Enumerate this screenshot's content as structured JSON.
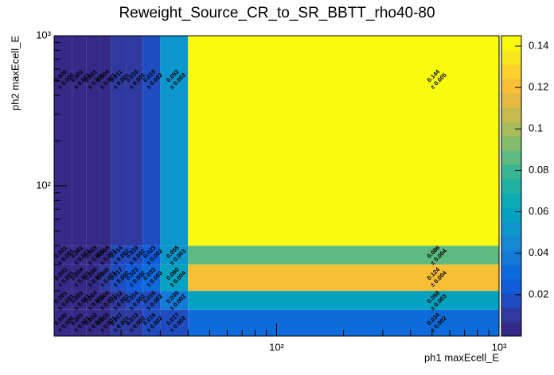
{
  "chart_data": {
    "type": "heatmap",
    "title": "Reweight_Source_CR_to_SR_BBTT_rho40-80",
    "xlabel": "ph1 maxEcell_E",
    "ylabel": "ph2 maxEcell_E",
    "xscale": "log",
    "yscale": "log",
    "xlim": [
      10,
      1000
    ],
    "ylim": [
      10,
      1000
    ],
    "xticks": [
      {
        "value": 100,
        "label": "10²"
      },
      {
        "value": 1000,
        "label": "10³"
      }
    ],
    "yticks": [
      {
        "value": 100,
        "label": "10²"
      },
      {
        "value": 1000,
        "label": "10³"
      }
    ],
    "xminorticks": [
      20,
      30,
      40,
      50,
      60,
      70,
      80,
      90,
      200,
      300,
      400,
      500,
      600,
      700,
      800,
      900
    ],
    "yminorticks": [
      20,
      30,
      40,
      50,
      60,
      70,
      80,
      90,
      200,
      300,
      400,
      500,
      600,
      700,
      800,
      900
    ],
    "xbins": [
      10,
      12,
      14,
      16,
      18,
      21,
      25,
      30,
      40,
      1000
    ],
    "ybins": [
      10,
      15,
      20,
      30,
      40,
      1000
    ],
    "values": [
      [
        0.0,
        0.001,
        0.002,
        0.003,
        0.007,
        0.013,
        0.016,
        0.017,
        0.034
      ],
      [
        0.001,
        0.002,
        0.004,
        0.004,
        0.012,
        0.014,
        0.015,
        0.035,
        0.058
      ],
      [
        0.003,
        0.004,
        0.006,
        0.009,
        0.017,
        0.023,
        0.033,
        0.06,
        0.124
      ],
      [
        0.001,
        0.002,
        0.003,
        0.004,
        0.014,
        0.019,
        0.023,
        0.055,
        0.086
      ],
      [
        0.0,
        0.001,
        0.001,
        0.004,
        0.011,
        0.01,
        0.019,
        0.052,
        0.144
      ]
    ],
    "value_labels": [
      [
        "0.000",
        "0.001",
        "0.002",
        "0.003",
        "0.007",
        "0.013",
        "0.016",
        "0.017",
        "0.034"
      ],
      [
        "0.001",
        "0.002",
        "0.004",
        "0.004",
        "0.012",
        "0.014",
        "0.015",
        "0.035",
        "0.058"
      ],
      [
        "0.003",
        "0.004",
        "0.006",
        "0.009",
        "0.017",
        "0.023",
        "0.033",
        "0.060",
        "0.124"
      ],
      [
        "0.001",
        "0.002",
        "0.003",
        "0.004",
        "0.014",
        "0.019",
        "0.023",
        "0.055",
        "0.086"
      ],
      [
        "0.000",
        "0.001",
        "0.001",
        "0.004",
        "0.011",
        "0.010",
        "0.019",
        "0.052",
        "0.144"
      ]
    ],
    "errors": [
      [
        0.0,
        0.001,
        0.001,
        0.001,
        0.001,
        0.002,
        0.002,
        0.002,
        0.002
      ],
      [
        0.001,
        0.001,
        0.001,
        0.001,
        0.002,
        0.002,
        0.002,
        0.002,
        0.003
      ],
      [
        0.001,
        0.001,
        0.001,
        0.001,
        0.002,
        0.002,
        0.003,
        0.004,
        0.004
      ],
      [
        0.001,
        0.001,
        0.001,
        0.001,
        0.002,
        0.002,
        0.002,
        0.003,
        0.004
      ],
      [
        0.0,
        0.001,
        0.001,
        0.001,
        0.001,
        0.001,
        0.002,
        0.003,
        0.005
      ]
    ],
    "error_labels": [
      [
        "± 0.000",
        "± 0.001",
        "± 0.001",
        "± 0.001",
        "± 0.001",
        "± 0.002",
        "± 0.002",
        "± 0.002",
        "± 0.002"
      ],
      [
        "± 0.001",
        "± 0.001",
        "± 0.001",
        "± 0.001",
        "± 0.002",
        "± 0.002",
        "± 0.002",
        "± 0.002",
        "± 0.003"
      ],
      [
        "± 0.001",
        "± 0.001",
        "± 0.001",
        "± 0.001",
        "± 0.002",
        "± 0.002",
        "± 0.003",
        "± 0.004",
        "± 0.004"
      ],
      [
        "± 0.001",
        "± 0.001",
        "± 0.001",
        "± 0.001",
        "± 0.002",
        "± 0.002",
        "± 0.002",
        "± 0.003",
        "± 0.004"
      ],
      [
        "± 0.000",
        "± 0.001",
        "± 0.001",
        "± 0.001",
        "± 0.001",
        "± 0.001",
        "± 0.002",
        "± 0.003",
        "± 0.005"
      ]
    ],
    "zlim": [
      0,
      0.145
    ],
    "zticks": [
      0.02,
      0.04,
      0.06,
      0.08,
      0.1,
      0.12,
      0.14
    ],
    "palette": [
      "#352a87",
      "#2e3a9f",
      "#1f4cc0",
      "#0f5cdd",
      "#0d6bdb",
      "#137ad6",
      "#1488d3",
      "#0d96cb",
      "#06a2c1",
      "#0caab3",
      "#1fb1a2",
      "#39b692",
      "#5dba80",
      "#86bd6b",
      "#a9bc5c",
      "#c8bb4e",
      "#e4ba41",
      "#f8bf34",
      "#fcd02a",
      "#f8e71c",
      "#f9fb0e"
    ]
  }
}
